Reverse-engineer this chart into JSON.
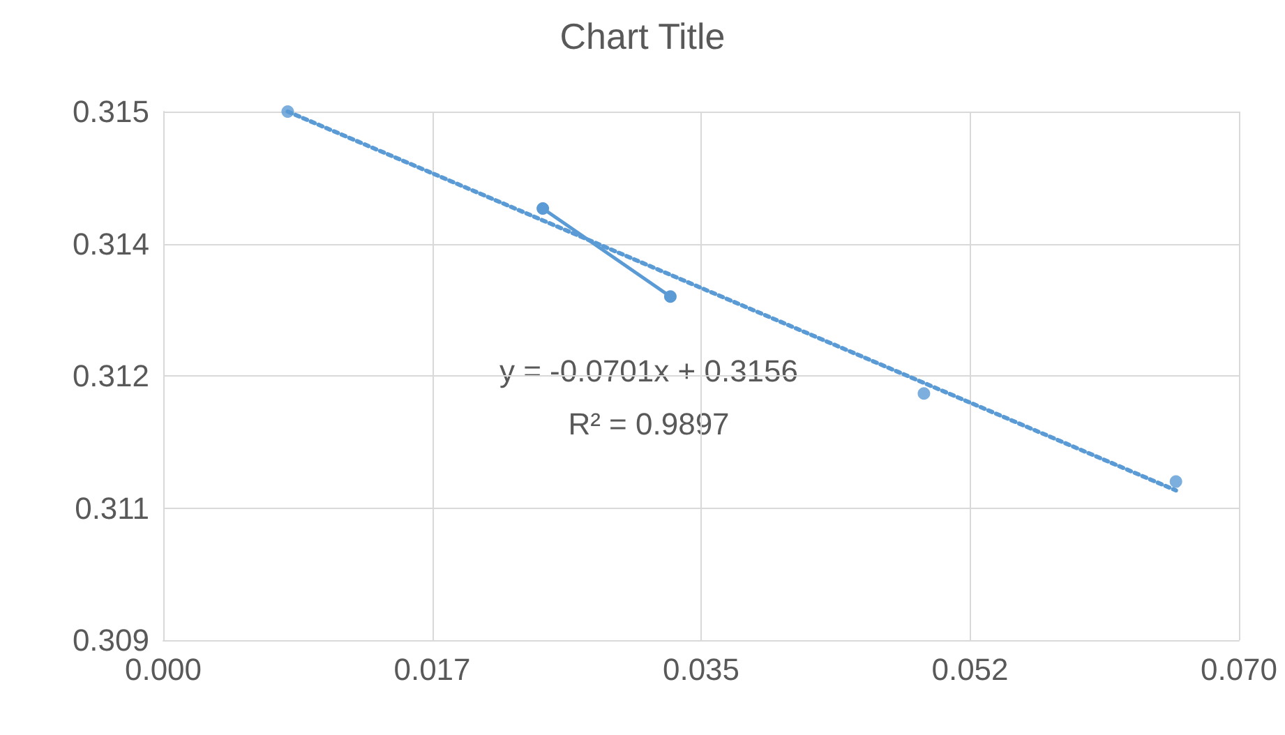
{
  "chart_data": {
    "type": "scatter",
    "title": "Chart Title",
    "series": [
      {
        "type": "scatter",
        "color": "#5b9bd5",
        "x": [
          0.0081,
          0.0495,
          0.0659
        ],
        "values": [
          0.315,
          0.3118,
          0.3108
        ]
      },
      {
        "type": "line",
        "color": "#5b9bd5",
        "x": [
          0.0247,
          0.033
        ],
        "values": [
          0.3139,
          0.3129
        ]
      },
      {
        "type": "line",
        "color": "#5b9bd5",
        "marker": "none",
        "line_style": "dotted",
        "x": [
          0.0081,
          0.0659
        ],
        "values": [
          0.315,
          0.3107
        ]
      }
    ],
    "xlim": [
      0,
      0.07
    ],
    "ylim": [
      0.309,
      0.315
    ],
    "xticks": [
      {
        "value": 0,
        "label": "0.000"
      },
      {
        "value": 0.0175,
        "label": "0.017"
      },
      {
        "value": 0.035,
        "label": "0.035"
      },
      {
        "value": 0.0525,
        "label": "0.052"
      },
      {
        "value": 0.07,
        "label": "0.070"
      }
    ],
    "yticks": [
      0.309,
      {
        "value": 0.3105,
        "label": "0.311"
      },
      0.312,
      {
        "value": 0.3135,
        "label": "0.314"
      },
      0.315
    ],
    "grid": true,
    "marker": "circle",
    "line_style": "solid",
    "annotations": [
      "y = -0.0701x + 0.3156",
      "R² = 0.9897"
    ]
  }
}
